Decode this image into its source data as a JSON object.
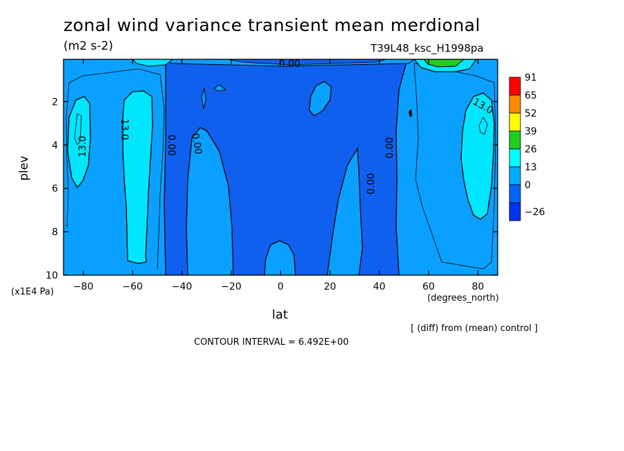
{
  "chart_data": {
    "type": "heatmap",
    "title": "zonal wind variance transient mean merdional",
    "subtitle": "(m2 s-2)",
    "run_label": "T39L48_ksc_H1998pa",
    "xlabel": "lat",
    "x_unit": "(degrees_north)",
    "ylabel": "plev",
    "y_unit": "(x1E4 Pa)",
    "x_ticks": [
      -80,
      -60,
      -40,
      -20,
      0,
      20,
      40,
      60,
      80
    ],
    "y_ticks": [
      2,
      4,
      6,
      8,
      10
    ],
    "xlim": [
      -88,
      88
    ],
    "ylim": [
      10,
      0.05
    ],
    "contour_interval_text": "CONTOUR INTERVAL = 6.492E+00",
    "note": "[ (diff) from (mean) control ]",
    "contour_labels": [
      "13.0",
      "13.0",
      "0.00",
      "0.00",
      "0.00",
      "0.00",
      "0.00",
      "13.0"
    ],
    "legend": {
      "levels": [
        "91",
        "65",
        "52",
        "39",
        "26",
        "13",
        "0",
        "-26"
      ],
      "colors": [
        "#ff0000",
        "#ff8c00",
        "#ffff00",
        "#22cc22",
        "#00ffff",
        "#00aaff",
        "#0066ff",
        "#0033ee"
      ]
    },
    "fill_colors": {
      "negative": "#1060f0",
      "low": "#0aa0ff",
      "mid": "#00e6ff",
      "high": "#22cc22"
    }
  }
}
